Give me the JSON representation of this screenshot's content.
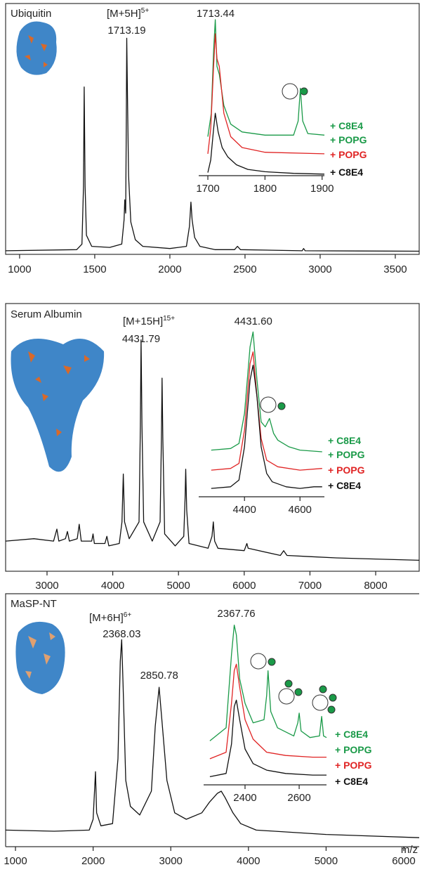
{
  "chart_data": [
    {
      "type": "line",
      "title": "Ubiquitin",
      "ion_label": "[M+5H]",
      "ion_charge": "5+",
      "peak_label": {
        "value": 1713.19,
        "label": "1713.19"
      },
      "xlim": [
        907,
        3659
      ],
      "xticks": [
        1000,
        1500,
        2000,
        2500,
        3000,
        3500
      ],
      "ylim": [
        0,
        100
      ],
      "series": [
        {
          "color": "#111111",
          "x": [
            907,
            1380,
            1415,
            1425,
            1430,
            1436,
            1445,
            1480,
            1600,
            1680,
            1695,
            1700,
            1706,
            1710,
            1713,
            1718,
            1725,
            1740,
            1770,
            1820,
            2000,
            2110,
            2130,
            2140,
            2148,
            2165,
            2200,
            2300,
            2430,
            2450,
            2470,
            2880,
            2890,
            2900,
            3659
          ],
          "values": [
            1,
            1.5,
            4,
            30,
            75,
            30,
            8,
            3,
            2.5,
            4,
            15,
            24,
            18,
            60,
            97,
            70,
            35,
            14,
            6,
            3,
            2,
            3,
            12,
            23,
            15,
            7,
            3,
            1.5,
            1.5,
            3,
            1.5,
            1,
            2,
            1,
            0.8
          ]
        }
      ]
    },
    {
      "type": "line",
      "peak_label": {
        "value": 1713.44,
        "label": "1713.44"
      },
      "xlim": [
        1684,
        1904
      ],
      "xticks": [
        1700,
        1800,
        1900
      ],
      "ylim": [
        0,
        100
      ],
      "series": [
        {
          "name": [
            "+ C8E4",
            "+ POPG"
          ],
          "color": "#1a9a48",
          "x": [
            1700,
            1706,
            1710,
            1713,
            1716,
            1720,
            1728,
            1740,
            1760,
            1800,
            1850,
            1858,
            1862,
            1866,
            1875,
            1904
          ],
          "values": [
            25,
            40,
            80,
            100,
            70,
            65,
            45,
            33,
            28,
            26,
            26,
            35,
            56,
            35,
            27,
            26
          ]
        },
        {
          "name": [
            "+ POPG"
          ],
          "color": "#e02424",
          "x": [
            1700,
            1705,
            1710,
            1713,
            1716,
            1720,
            1728,
            1740,
            1760,
            1800,
            1904
          ],
          "values": [
            14,
            30,
            70,
            91,
            75,
            70,
            40,
            25,
            18,
            15,
            14
          ]
        },
        {
          "name": [
            "+ C8E4"
          ],
          "color": "#111111",
          "x": [
            1700,
            1705,
            1710,
            1713,
            1718,
            1725,
            1735,
            1750,
            1770,
            1800,
            1850,
            1904
          ],
          "values": [
            2,
            10,
            30,
            40,
            28,
            18,
            12,
            7,
            4,
            2.5,
            1.5,
            1
          ]
        }
      ]
    },
    {
      "type": "line",
      "title": "Serum Albumin",
      "ion_label": "[M+15H]",
      "ion_charge": "15+",
      "peak_label": {
        "value": 4431.79,
        "label": "4431.79"
      },
      "xlim": [
        2370,
        8662
      ],
      "xticks": [
        3000,
        4000,
        5000,
        6000,
        7000,
        8000
      ],
      "ylim": [
        0,
        100
      ],
      "series": [
        {
          "color": "#111111",
          "x": [
            2370,
            2800,
            3100,
            3150,
            3180,
            3280,
            3310,
            3340,
            3460,
            3490,
            3520,
            3680,
            3700,
            3720,
            3880,
            3910,
            3940,
            4100,
            4140,
            4160,
            4180,
            4250,
            4400,
            4420,
            4431,
            4445,
            4470,
            4600,
            4720,
            4740,
            4750,
            4762,
            4790,
            4950,
            5080,
            5100,
            5110,
            5125,
            5160,
            5450,
            5510,
            5530,
            5550,
            5600,
            6000,
            6040,
            6060,
            6550,
            6600,
            6650,
            7000,
            7400,
            8662
          ],
          "values": [
            12,
            13,
            12,
            17,
            12,
            13,
            16,
            12,
            13,
            19,
            12,
            12,
            15,
            11,
            11,
            14,
            10,
            11,
            20,
            40,
            20,
            13,
            20,
            60,
            96,
            60,
            20,
            12,
            20,
            55,
            80,
            55,
            15,
            10,
            14,
            30,
            42,
            25,
            11,
            9,
            14,
            20,
            12,
            9,
            8,
            11,
            9,
            6,
            8,
            6,
            5.5,
            5,
            4
          ]
        }
      ]
    },
    {
      "type": "line",
      "peak_label": {
        "value": 4431.6,
        "label": "4431.60"
      },
      "xlim": [
        4235,
        4688
      ],
      "xticks": [
        4400,
        4600
      ],
      "ylim": [
        0,
        100
      ],
      "series": [
        {
          "name": [
            "+ C8E4",
            "+ POPG"
          ],
          "color": "#1a9a48",
          "x": [
            4280,
            4350,
            4380,
            4400,
            4420,
            4431,
            4445,
            4460,
            4475,
            4490,
            4505,
            4520,
            4560,
            4600,
            4680
          ],
          "values": [
            28,
            29,
            32,
            50,
            90,
            99,
            70,
            45,
            42,
            47,
            38,
            34,
            30,
            28,
            27
          ]
        },
        {
          "name": [
            "+ POPG"
          ],
          "color": "#e02424",
          "x": [
            4280,
            4350,
            4380,
            4400,
            4420,
            4431,
            4445,
            4460,
            4480,
            4520,
            4600,
            4680
          ],
          "values": [
            16,
            17,
            20,
            40,
            80,
            87,
            60,
            35,
            22,
            18,
            16,
            17
          ]
        },
        {
          "name": [
            "+ C8E4"
          ],
          "color": "#111111",
          "x": [
            4280,
            4350,
            4380,
            4400,
            4420,
            4431,
            4445,
            4460,
            4480,
            4500,
            4550,
            4600,
            4650,
            4680
          ],
          "values": [
            5,
            6,
            10,
            30,
            70,
            79,
            60,
            30,
            14,
            9,
            6,
            5,
            6,
            6
          ]
        }
      ]
    },
    {
      "type": "line",
      "title": "MaSP-NT",
      "ion_label": "[M+6H]",
      "ion_charge": "6+",
      "peak_label": {
        "value": 2368.03,
        "label": "2368.03"
      },
      "second_peak_label": {
        "value": 2850.78,
        "label": "2850.78"
      },
      "xlabel": "m/z",
      "xlim": [
        873,
        6199
      ],
      "xticks": [
        1000,
        2000,
        3000,
        4000,
        5000,
        6000
      ],
      "ylim": [
        0,
        100
      ],
      "series": [
        {
          "color": "#111111",
          "x": [
            873,
            1500,
            1950,
            2000,
            2030,
            2045,
            2100,
            2250,
            2320,
            2350,
            2368,
            2385,
            2420,
            2480,
            2600,
            2750,
            2800,
            2850,
            2880,
            2950,
            3050,
            3200,
            3400,
            3500,
            3600,
            3650,
            3700,
            3800,
            3900,
            4100,
            5000,
            6199
          ],
          "values": [
            7,
            6.5,
            7,
            12,
            34,
            15,
            9,
            10,
            40,
            85,
            95,
            75,
            30,
            18,
            14,
            25,
            55,
            73,
            60,
            30,
            15,
            12,
            15,
            20,
            24,
            25,
            22,
            15,
            10,
            7,
            5,
            3.5
          ]
        }
      ]
    },
    {
      "type": "line",
      "peak_label": {
        "value": 2367.76,
        "label": "2367.76"
      },
      "xlim": [
        2247,
        2701
      ],
      "xticks": [
        2400,
        2600
      ],
      "ylim": [
        0,
        100
      ],
      "series": [
        {
          "name": [
            "+ C8E4",
            "+ POPG"
          ],
          "color": "#1a9a48",
          "x": [
            2270,
            2330,
            2350,
            2360,
            2368,
            2380,
            2400,
            2430,
            2470,
            2480,
            2485,
            2495,
            2520,
            2580,
            2595,
            2600,
            2607,
            2640,
            2675,
            2683,
            2690,
            2701
          ],
          "values": [
            27,
            35,
            80,
            98,
            92,
            65,
            50,
            38,
            40,
            55,
            70,
            45,
            35,
            30,
            38,
            44,
            33,
            29,
            30,
            42,
            30,
            29
          ]
        },
        {
          "name": [
            "+ POPG"
          ],
          "color": "#e02424",
          "x": [
            2270,
            2330,
            2350,
            2360,
            2368,
            2380,
            2400,
            2430,
            2480,
            2550,
            2650,
            2701
          ],
          "values": [
            16,
            20,
            50,
            70,
            74,
            60,
            40,
            28,
            20,
            18,
            17,
            17
          ]
        },
        {
          "name": [
            "+ C8E4"
          ],
          "color": "#111111",
          "x": [
            2270,
            2330,
            2350,
            2360,
            2368,
            2380,
            2400,
            2430,
            2480,
            2550,
            2650,
            2701
          ],
          "values": [
            5,
            7,
            25,
            48,
            52,
            40,
            22,
            13,
            9,
            7,
            6,
            6
          ]
        }
      ]
    }
  ]
}
